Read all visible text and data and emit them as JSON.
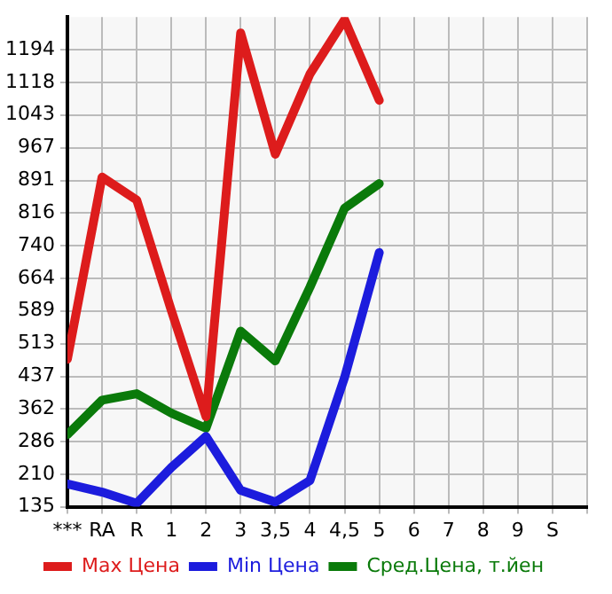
{
  "chart_data": {
    "type": "line",
    "categories": [
      "***",
      "RA",
      "R",
      "1",
      "2",
      "3",
      "3,5",
      "4",
      "4,5",
      "5",
      "6",
      "7",
      "8",
      "9",
      "S"
    ],
    "series": [
      {
        "name": "Max Цена",
        "color": "#dd1c1c",
        "values": [
          477,
          899,
          846,
          590,
          344,
          1233,
          952,
          1138,
          1264,
          1077,
          null,
          null,
          null,
          null,
          null
        ]
      },
      {
        "name": "Min Цена",
        "color": "#1c1cdd",
        "values": [
          188,
          169,
          143,
          226,
          298,
          173,
          146,
          196,
          435,
          724,
          null,
          null,
          null,
          null,
          null
        ]
      },
      {
        "name": "Сред.Цена, т.йен",
        "color": "#0a7a0a",
        "values": [
          302,
          382,
          397,
          352,
          317,
          542,
          473,
          644,
          827,
          884,
          null,
          null,
          null,
          null,
          null
        ]
      }
    ],
    "ylim": [
      135,
      1270
    ],
    "yticks": [
      135,
      210,
      286,
      362,
      437,
      513,
      589,
      664,
      740,
      816,
      891,
      967,
      1043,
      1118,
      1194
    ],
    "grid": true,
    "legend": "bottom",
    "marker": "none",
    "line_style": "solid"
  }
}
